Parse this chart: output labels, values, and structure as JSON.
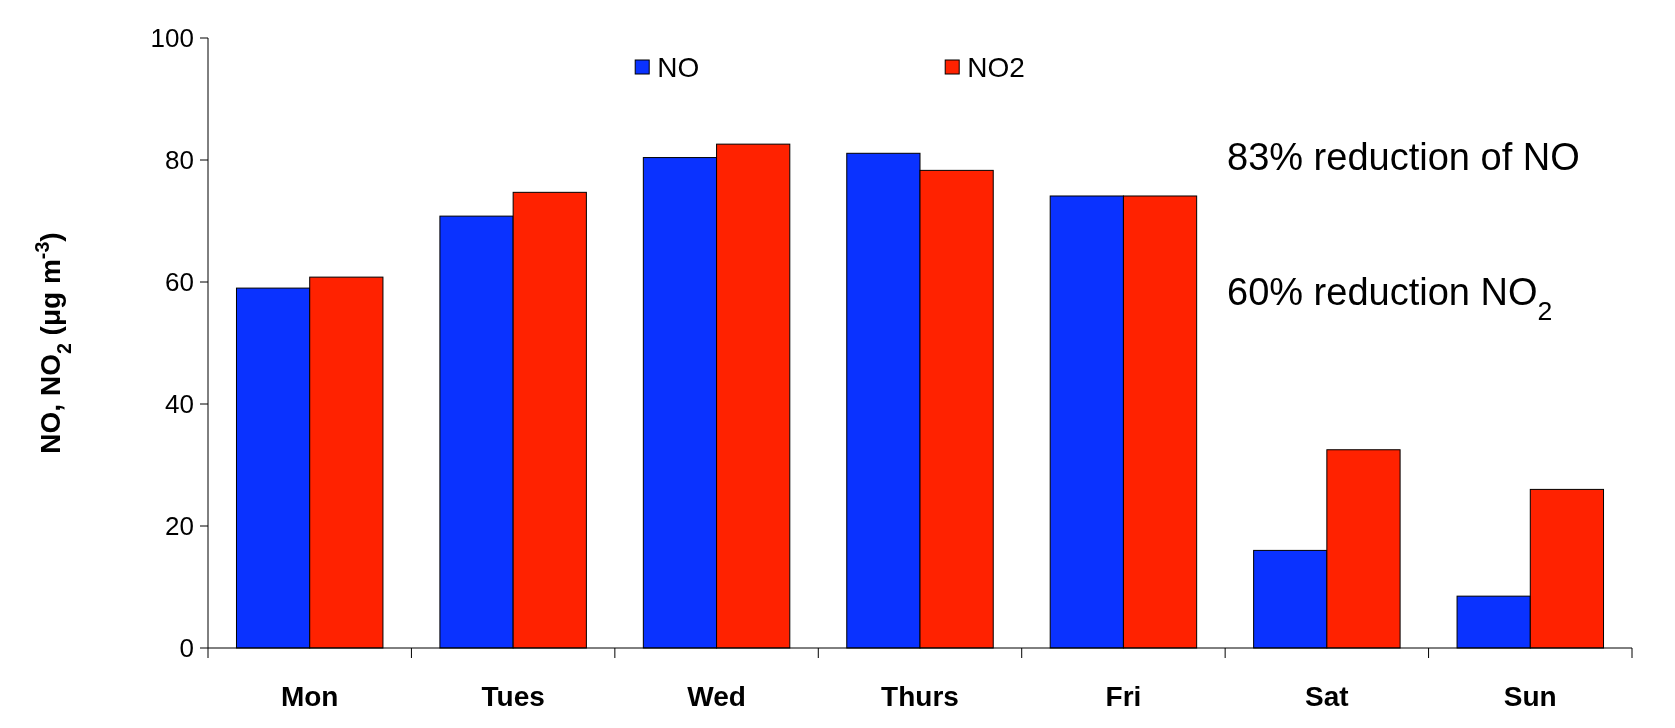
{
  "chart_data": {
    "type": "bar",
    "categories": [
      "Mon",
      "Tues",
      "Wed",
      "Thurs",
      "Fri",
      "Sat",
      "Sun"
    ],
    "series": [
      {
        "name": "NO",
        "color": "#0a32ff",
        "values": [
          59,
          70.8,
          80.4,
          81.1,
          74.1,
          16,
          8.5
        ]
      },
      {
        "name": "NO2",
        "color": "#ff2200",
        "values": [
          60.8,
          74.7,
          82.6,
          78.3,
          74.1,
          32.5,
          26
        ]
      }
    ],
    "ylabel": "NO, NO$_{2}$ (μg m$^{-3}$)",
    "ylim": [
      0,
      100
    ],
    "yticks": [
      0,
      20,
      40,
      60,
      80,
      100
    ],
    "legend": "top",
    "annotations": [
      "83% reduction of NO",
      "60% reduction NO$_{2}$"
    ]
  }
}
